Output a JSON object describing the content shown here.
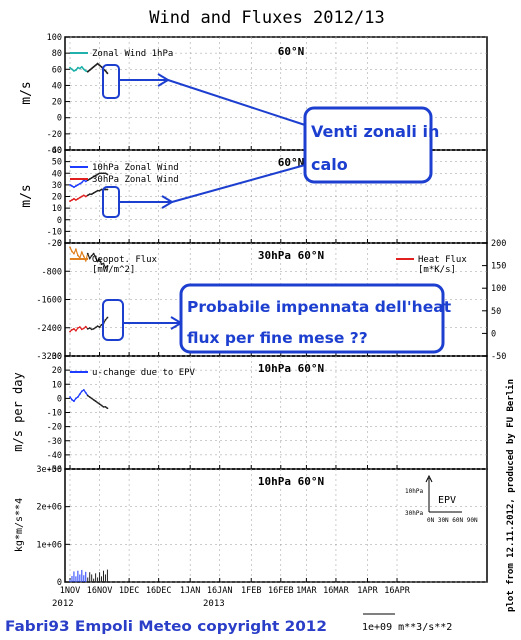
{
  "chart_data": [
    {
      "type": "line",
      "title": "Wind and Fluxes 2012/13",
      "panel_label": "60°N",
      "ylabel": "m/s",
      "ylim": [
        -40,
        100
      ],
      "yticks": [
        "100",
        "80",
        "60",
        "40",
        "20",
        "0",
        "-20",
        "-40"
      ],
      "grid": true,
      "legend": "top-left",
      "series": [
        {
          "name": "Zonal Wind 1hPa",
          "color": "#20b2aa",
          "x": [
            0,
            1,
            2,
            3,
            4,
            5,
            6,
            7,
            8,
            9,
            10,
            11,
            12,
            13,
            14,
            15,
            16,
            17,
            18,
            19
          ],
          "values": [
            62,
            60,
            58,
            59,
            62,
            61,
            63,
            60,
            58,
            57,
            59,
            61,
            63,
            65,
            67,
            65,
            63,
            60,
            58,
            55
          ]
        }
      ]
    },
    {
      "type": "line",
      "panel_label": "60°N",
      "ylabel": "m/s",
      "ylim": [
        -20,
        60
      ],
      "yticks": [
        "60",
        "50",
        "40",
        "30",
        "20",
        "10",
        "0",
        "-10",
        "-20"
      ],
      "grid": true,
      "legend": "top-left",
      "series": [
        {
          "name": "10hPa Zonal Wind",
          "color": "#1e3cff",
          "x": [
            0,
            1,
            2,
            3,
            4,
            5,
            6,
            7,
            8,
            9,
            10,
            11,
            12,
            13,
            14,
            15,
            16,
            17,
            18,
            19
          ],
          "values": [
            30,
            29,
            28,
            29,
            30,
            31,
            32,
            34,
            33,
            34,
            35,
            36,
            37,
            38,
            39,
            40,
            40,
            40,
            40,
            39
          ]
        },
        {
          "name": "30hPa Zonal Wind",
          "color": "#e02020",
          "x": [
            0,
            1,
            2,
            3,
            4,
            5,
            6,
            7,
            8,
            9,
            10,
            11,
            12,
            13,
            14,
            15,
            16,
            17,
            18,
            19
          ],
          "values": [
            16,
            17,
            18,
            17,
            18,
            19,
            20,
            21,
            20,
            21,
            22,
            22,
            23,
            24,
            25,
            25,
            26,
            26,
            26,
            26
          ]
        }
      ]
    },
    {
      "type": "line",
      "panel_label": "30hPa 60°N",
      "ylim_left": [
        -3200,
        0
      ],
      "yticks_left": [
        "-3200",
        "-2400",
        "-1600",
        "-800",
        "0"
      ],
      "ylim_right": [
        -50,
        200
      ],
      "yticks_right": [
        "200",
        "150",
        "100",
        "50",
        "0",
        "-50"
      ],
      "grid": true,
      "legend": "top-left and top-right",
      "series": [
        {
          "name": "Geopot. Flux",
          "unit": "[mW/m^2]",
          "color": "#e08020",
          "x": [
            0,
            1,
            2,
            3,
            4,
            5,
            6,
            7,
            8,
            9,
            10,
            11,
            12,
            13,
            14,
            15,
            16,
            17,
            18,
            19
          ],
          "values": [
            -120,
            -240,
            -300,
            -180,
            -350,
            -420,
            -260,
            -380,
            -500,
            -300,
            -440,
            -360,
            -300,
            -400,
            -520,
            -460,
            -600,
            -580,
            -700,
            -650
          ]
        },
        {
          "name": "Heat Flux",
          "unit": "[m*K/s]",
          "color": "#e02020",
          "x": [
            0,
            1,
            2,
            3,
            4,
            5,
            6,
            7,
            8,
            9,
            10,
            11,
            12,
            13,
            14,
            15,
            16,
            17,
            18,
            19
          ],
          "values": [
            4,
            8,
            10,
            6,
            12,
            14,
            9,
            11,
            15,
            10,
            12,
            9,
            10,
            13,
            16,
            14,
            19,
            22,
            30,
            35
          ]
        }
      ]
    },
    {
      "type": "line",
      "panel_label": "10hPa 60°N",
      "ylabel": "m/s per day",
      "ylim": [
        -50,
        30
      ],
      "yticks": [
        "30",
        "20",
        "10",
        "0",
        "-10",
        "-20",
        "-30",
        "-40",
        "-50"
      ],
      "grid": true,
      "legend": "top-left",
      "series": [
        {
          "name": "u-change due to EPV",
          "color": "#1e3cff",
          "x": [
            0,
            1,
            2,
            3,
            4,
            5,
            6,
            7,
            8,
            9,
            10,
            11,
            12,
            13,
            14,
            15,
            16,
            17,
            18,
            19
          ],
          "values": [
            1,
            -1,
            -2,
            0,
            1,
            3,
            5,
            6,
            4,
            2,
            1,
            0,
            -1,
            -2,
            -3,
            -4,
            -5,
            -6,
            -6,
            -7
          ]
        }
      ]
    },
    {
      "type": "line",
      "panel_label": "10hPa 60°N",
      "ylabel": "kg*m/s**4",
      "ylim": [
        0,
        3000000
      ],
      "yticks": [
        "3e+06",
        "2e+06",
        "1e+06",
        "0"
      ],
      "grid": true,
      "legend": "top-right",
      "inset": {
        "label": "EPV",
        "top_label": "10hPa",
        "bottom_label": "30hPa",
        "x_label": "0N 30N 60N 90N"
      },
      "series": [
        {
          "name": "EPV",
          "color": "#1e3cff",
          "x": [
            0,
            1,
            2,
            3,
            4,
            5,
            6,
            7,
            8,
            9,
            10,
            11,
            12,
            13,
            14,
            15,
            16,
            17,
            18,
            19
          ],
          "values": [
            60000,
            160000,
            280000,
            150000,
            300000,
            200000,
            320000,
            180000,
            270000,
            120000,
            260000,
            200000,
            90000,
            230000,
            120000,
            260000,
            150000,
            300000,
            200000,
            330000
          ]
        }
      ]
    }
  ],
  "x_axis": {
    "ticks": [
      "1NOV",
      "16NOV",
      "1DEC",
      "16DEC",
      "1JAN",
      "16JAN",
      "1FEB",
      "16FEB",
      "1MAR",
      "16MAR",
      "1APR",
      "16APR"
    ],
    "year_labels": {
      "2012": "2012",
      "2013": "2013"
    }
  },
  "annotations": {
    "box1": [
      "Venti zonali in",
      "calo"
    ],
    "box2": [
      "Probabile impennata dell'heat",
      "flux per fine mese ??"
    ]
  },
  "footer": {
    "credit": "Fabri93 Empoli Meteo copyright 2012",
    "scale_unit": "1e+09  m**3/s**2",
    "side_note": "plot from 12.11.2012, produced by FU Berlin"
  },
  "colors": {
    "annotation": "#1d3fd0",
    "axis": "#000000",
    "grid": "#888888"
  }
}
